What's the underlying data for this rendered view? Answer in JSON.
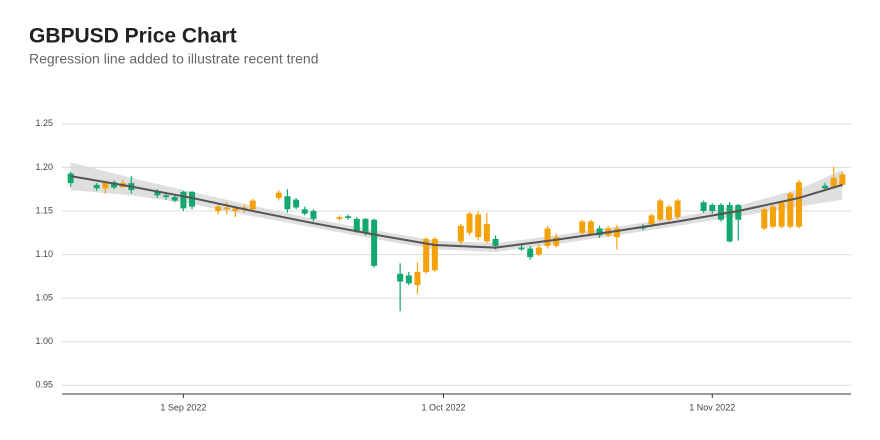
{
  "chart_data": {
    "type": "candlestick",
    "title": "GBPUSD Price Chart",
    "subtitle": "Regression line added to illustrate recent trend",
    "x": [
      "2022-08-19",
      "2022-08-22",
      "2022-08-23",
      "2022-08-24",
      "2022-08-25",
      "2022-08-26",
      "2022-08-29",
      "2022-08-30",
      "2022-08-31",
      "2022-09-01",
      "2022-09-02",
      "2022-09-05",
      "2022-09-06",
      "2022-09-07",
      "2022-09-08",
      "2022-09-09",
      "2022-09-12",
      "2022-09-13",
      "2022-09-14",
      "2022-09-15",
      "2022-09-16",
      "2022-09-19",
      "2022-09-20",
      "2022-09-21",
      "2022-09-22",
      "2022-09-23",
      "2022-09-26",
      "2022-09-27",
      "2022-09-28",
      "2022-09-29",
      "2022-09-30",
      "2022-10-03",
      "2022-10-04",
      "2022-10-05",
      "2022-10-06",
      "2022-10-07",
      "2022-10-10",
      "2022-10-11",
      "2022-10-12",
      "2022-10-13",
      "2022-10-14",
      "2022-10-17",
      "2022-10-18",
      "2022-10-19",
      "2022-10-20",
      "2022-10-21",
      "2022-10-24",
      "2022-10-25",
      "2022-10-26",
      "2022-10-27",
      "2022-10-28",
      "2022-10-31",
      "2022-11-01",
      "2022-11-02",
      "2022-11-03",
      "2022-11-04",
      "2022-11-07",
      "2022-11-08",
      "2022-11-09",
      "2022-11-10",
      "2022-11-11",
      "2022-11-14",
      "2022-11-15",
      "2022-11-16"
    ],
    "open": [
      1.193,
      1.18,
      1.176,
      1.183,
      1.177,
      1.182,
      1.173,
      1.168,
      1.166,
      1.172,
      1.172,
      1.15,
      1.152,
      1.15,
      1.151,
      1.152,
      1.165,
      1.167,
      1.163,
      1.152,
      1.15,
      1.141,
      1.144,
      1.141,
      1.141,
      1.14,
      1.078,
      1.076,
      1.065,
      1.08,
      1.082,
      1.115,
      1.125,
      1.12,
      1.115,
      1.118,
      1.108,
      1.107,
      1.1,
      1.11,
      1.11,
      1.125,
      1.124,
      1.13,
      1.122,
      1.12,
      1.132,
      1.135,
      1.14,
      1.14,
      1.143,
      1.16,
      1.157,
      1.157,
      1.157,
      1.157,
      1.13,
      1.132,
      1.132,
      1.132,
      1.132,
      1.179,
      1.178,
      1.18
    ],
    "high": [
      1.195,
      1.182,
      1.185,
      1.185,
      1.186,
      1.19,
      1.175,
      1.172,
      1.168,
      1.173,
      1.173,
      1.157,
      1.16,
      1.155,
      1.157,
      1.164,
      1.174,
      1.175,
      1.165,
      1.155,
      1.152,
      1.145,
      1.146,
      1.143,
      1.142,
      1.141,
      1.09,
      1.08,
      1.091,
      1.12,
      1.12,
      1.135,
      1.149,
      1.15,
      1.148,
      1.122,
      1.112,
      1.11,
      1.112,
      1.133,
      1.124,
      1.14,
      1.14,
      1.133,
      1.133,
      1.134,
      1.135,
      1.147,
      1.164,
      1.157,
      1.164,
      1.162,
      1.159,
      1.159,
      1.16,
      1.158,
      1.154,
      1.157,
      1.162,
      1.172,
      1.186,
      1.182,
      1.201,
      1.195
    ],
    "low": [
      1.178,
      1.173,
      1.17,
      1.175,
      1.177,
      1.17,
      1.165,
      1.163,
      1.16,
      1.15,
      1.152,
      1.146,
      1.146,
      1.143,
      1.148,
      1.15,
      1.162,
      1.148,
      1.152,
      1.145,
      1.138,
      1.139,
      1.14,
      1.125,
      1.122,
      1.085,
      1.035,
      1.065,
      1.055,
      1.078,
      1.08,
      1.112,
      1.122,
      1.116,
      1.113,
      1.106,
      1.104,
      1.094,
      1.098,
      1.107,
      1.108,
      1.122,
      1.122,
      1.119,
      1.12,
      1.106,
      1.128,
      1.133,
      1.138,
      1.138,
      1.141,
      1.148,
      1.147,
      1.138,
      1.114,
      1.116,
      1.128,
      1.13,
      1.13,
      1.13,
      1.13,
      1.174,
      1.176,
      1.178
    ],
    "close": [
      1.182,
      1.176,
      1.183,
      1.177,
      1.182,
      1.174,
      1.168,
      1.166,
      1.162,
      1.153,
      1.155,
      1.155,
      1.154,
      1.153,
      1.154,
      1.162,
      1.171,
      1.152,
      1.154,
      1.147,
      1.141,
      1.143,
      1.142,
      1.127,
      1.125,
      1.087,
      1.069,
      1.067,
      1.08,
      1.118,
      1.118,
      1.133,
      1.147,
      1.146,
      1.135,
      1.11,
      1.106,
      1.097,
      1.108,
      1.13,
      1.12,
      1.138,
      1.138,
      1.122,
      1.13,
      1.13,
      1.13,
      1.145,
      1.162,
      1.155,
      1.162,
      1.15,
      1.15,
      1.14,
      1.115,
      1.14,
      1.152,
      1.155,
      1.16,
      1.17,
      1.183,
      1.176,
      1.188,
      1.192
    ],
    "up_color": "#f5a20a",
    "down_color": "#12a86f",
    "trend": {
      "color": "#555555",
      "band_color": "#d9d9d9",
      "x": [
        "2022-08-19",
        "2022-08-26",
        "2022-09-02",
        "2022-09-09",
        "2022-09-16",
        "2022-09-23",
        "2022-09-30",
        "2022-10-07",
        "2022-10-14",
        "2022-10-21",
        "2022-10-28",
        "2022-11-04",
        "2022-11-11",
        "2022-11-16"
      ],
      "values": [
        1.19,
        1.178,
        1.165,
        1.15,
        1.136,
        1.123,
        1.111,
        1.108,
        1.117,
        1.127,
        1.138,
        1.15,
        1.165,
        1.18
      ],
      "lower": [
        1.174,
        1.168,
        1.158,
        1.144,
        1.131,
        1.118,
        1.106,
        1.103,
        1.112,
        1.122,
        1.133,
        1.144,
        1.155,
        1.163
      ],
      "upper": [
        1.206,
        1.188,
        1.172,
        1.156,
        1.141,
        1.128,
        1.116,
        1.113,
        1.122,
        1.132,
        1.143,
        1.156,
        1.175,
        1.197
      ]
    },
    "xlim": [
      "2022-08-18",
      "2022-11-17"
    ],
    "xticks": [
      {
        "value": "2022-09-01",
        "label": "1 Sep 2022"
      },
      {
        "value": "2022-10-01",
        "label": "1 Oct 2022"
      },
      {
        "value": "2022-11-01",
        "label": "1 Nov 2022"
      }
    ],
    "ylim": [
      0.94,
      1.29
    ],
    "yticks": [
      0.95,
      {
        "value": 1.0,
        "label": "1.00"
      },
      1.05,
      {
        "value": 1.1,
        "label": "1.10"
      },
      1.15,
      {
        "value": 1.2,
        "label": "1.20"
      },
      1.25
    ],
    "grid": true
  }
}
